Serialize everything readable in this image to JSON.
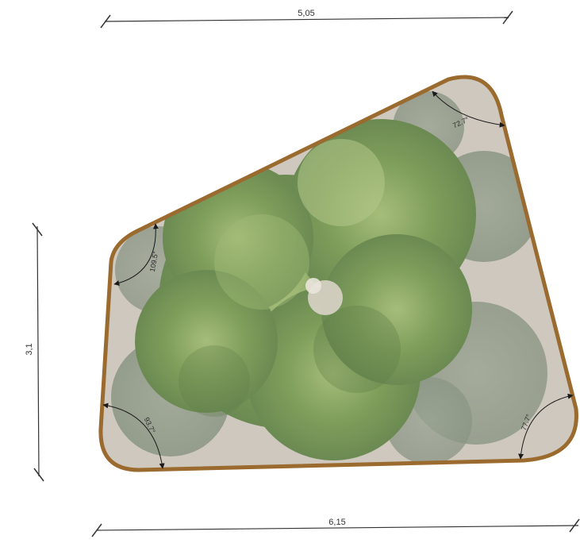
{
  "plan": {
    "dimensions": {
      "top": "5,05",
      "bottom": "6,15",
      "left": "3,1"
    },
    "angles": {
      "top_right": "72.7°",
      "left_upper": "109.5°",
      "bottom_left": "93.7°",
      "bottom_right": "77.7°"
    },
    "colors": {
      "edge": "#9a6a2e",
      "fill": "#cfc8be",
      "foliage": "#7f9e5b",
      "dimension_line": "#333333"
    }
  }
}
